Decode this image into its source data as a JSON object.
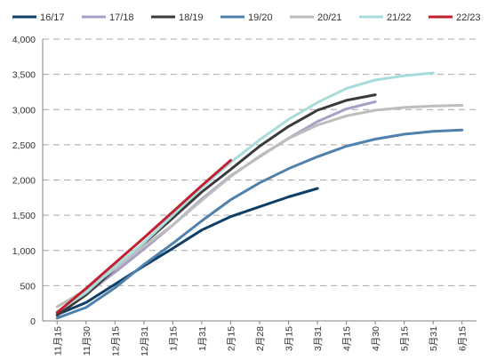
{
  "chart_data": {
    "type": "line",
    "title": "",
    "xlabel": "",
    "ylabel": "",
    "ylim": [
      0,
      4000
    ],
    "yticks": [
      0,
      500,
      1000,
      1500,
      2000,
      2500,
      3000,
      3500,
      4000
    ],
    "ytick_labels": [
      "0",
      "500",
      "1,000",
      "1,500",
      "2,000",
      "2,500",
      "3,000",
      "3,500",
      "4,000"
    ],
    "xtick_labels": [
      "11月15",
      "11月30",
      "12月15",
      "12月31",
      "1月15",
      "1月31",
      "2月15",
      "2月28",
      "3月15",
      "3月31",
      "4月15",
      "4月30",
      "5月15",
      "5月31",
      "6月15"
    ],
    "grid": "horizontal-dashed",
    "legend_position": "top",
    "series": [
      {
        "name": "16/17",
        "color": "#0f3e66",
        "values": [
          90,
          260,
          520,
          780,
          1030,
          1290,
          1480,
          1620,
          1760,
          1880
        ]
      },
      {
        "name": "17/18",
        "color": "#a99fc9",
        "values": [
          110,
          380,
          690,
          1020,
          1360,
          1730,
          2060,
          2330,
          2590,
          2830,
          3010,
          3110
        ]
      },
      {
        "name": "18/19",
        "color": "#3a3a3a",
        "values": [
          80,
          370,
          740,
          1100,
          1460,
          1830,
          2150,
          2480,
          2760,
          2990,
          3130,
          3210
        ]
      },
      {
        "name": "19/20",
        "color": "#4f81ad",
        "values": [
          40,
          190,
          470,
          800,
          1100,
          1420,
          1720,
          1960,
          2160,
          2330,
          2480,
          2580,
          2650,
          2690,
          2710
        ]
      },
      {
        "name": "20/21",
        "color": "#bdbdbd",
        "values": [
          200,
          440,
          740,
          1060,
          1360,
          1710,
          2050,
          2340,
          2590,
          2780,
          2910,
          2990,
          3030,
          3050,
          3060
        ]
      },
      {
        "name": "21/22",
        "color": "#a8dcdc",
        "values": [
          130,
          400,
          770,
          1110,
          1500,
          1890,
          2250,
          2570,
          2860,
          3100,
          3300,
          3420,
          3480,
          3520
        ]
      },
      {
        "name": "22/23",
        "color": "#c0202f",
        "values": [
          120,
          460,
          820,
          1180,
          1550,
          1920,
          2280
        ]
      }
    ]
  }
}
